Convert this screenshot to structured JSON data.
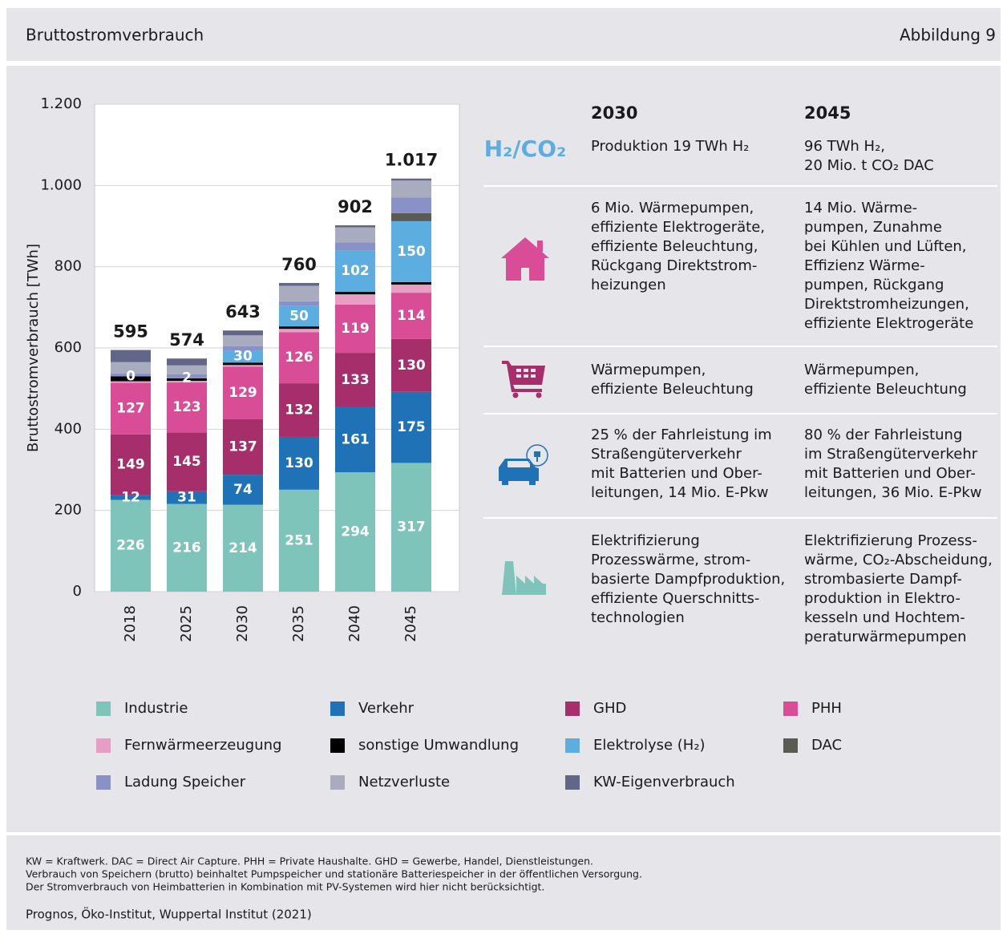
{
  "header": {
    "title": "Bruttostromverbrauch",
    "figure": "Abbildung 9"
  },
  "chart_data": {
    "type": "stacked_bar",
    "y_label": "Bruttostromverbrauch [TWh]",
    "categories": [
      "2018",
      "2025",
      "2030",
      "2035",
      "2040",
      "2045"
    ],
    "ylim": [
      0,
      1200
    ],
    "yticks": [
      0,
      200,
      400,
      600,
      800,
      {
        "value": 1000,
        "label": "1.000"
      },
      {
        "value": 1200,
        "label": "1.200"
      }
    ],
    "grid": true,
    "series": [
      {
        "name": "Industrie",
        "color": "#7fc4ba",
        "show_labels": true,
        "values": [
          226,
          216,
          214,
          251,
          294,
          317
        ]
      },
      {
        "name": "Verkehr",
        "color": "#1f72b6",
        "show_labels": true,
        "values": [
          12,
          31,
          74,
          130,
          161,
          175
        ]
      },
      {
        "name": "GHD",
        "color": "#a62f6b",
        "show_labels": true,
        "values": [
          149,
          145,
          137,
          132,
          133,
          130
        ]
      },
      {
        "name": "PHH",
        "color": "#d84d96",
        "show_labels": true,
        "values": [
          127,
          123,
          129,
          126,
          119,
          114
        ]
      },
      {
        "name": "Fernwärmeerzeugung",
        "color": "#e89dc4",
        "values": [
          4,
          4,
          4,
          8,
          25,
          20
        ]
      },
      {
        "name": "sonstige Umwandlung",
        "color": "#000000",
        "values": [
          12,
          6,
          6,
          6,
          6,
          6
        ]
      },
      {
        "name": "Elektrolyse (H₂)",
        "color": "#5caee1",
        "show_labels": true,
        "values": [
          0,
          2,
          30,
          50,
          102,
          150
        ]
      },
      {
        "name": "DAC",
        "color": "#5b5b56",
        "values": [
          0,
          0,
          0,
          0,
          0,
          20
        ]
      },
      {
        "name": "Ladung Speicher",
        "color": "#8a91c6",
        "values": [
          7,
          8,
          10,
          12,
          20,
          38
        ]
      },
      {
        "name": "Netzverluste",
        "color": "#a9abbf",
        "values": [
          28,
          22,
          27,
          38,
          37,
          42
        ]
      },
      {
        "name": "KW-Eigenverbrauch",
        "color": "#62678a",
        "values": [
          30,
          17,
          12,
          7,
          5,
          5
        ]
      }
    ],
    "totals": {
      "values": [
        595,
        574,
        643,
        760,
        902,
        1017
      ],
      "value_labels": [
        "595",
        "574",
        "643",
        "760",
        "902",
        "1.017"
      ]
    }
  },
  "table": {
    "headers": [
      "2030",
      "2045"
    ],
    "rows": [
      {
        "label": "H₂/CO₂",
        "cells": [
          [
            "Produktion 19 TWh H₂"
          ],
          [
            "96 TWh H₂,",
            "20 Mio. t CO₂ DAC"
          ]
        ]
      },
      {
        "cells": [
          [
            "6 Mio. Wärmepumpen,",
            "effiziente Elektrogeräte,",
            "effiziente Beleuchtung,",
            "Rückgang Direktstrom-",
            "heizungen"
          ],
          [
            "14 Mio. Wärme-",
            "pumpen, Zunahme",
            "bei Kühlen und Lüften,",
            "Effizienz Wärme-",
            "pumpen, Rückgang",
            "Direktstromheizungen,",
            "effiziente Elektrogeräte"
          ]
        ]
      },
      {
        "cells": [
          [
            "Wärmepumpen,",
            "effiziente Beleuchtung"
          ],
          [
            "Wärmepumpen,",
            "effiziente Beleuchtung"
          ]
        ]
      },
      {
        "cells": [
          [
            "25 % der Fahrleistung im",
            "Straßengüterverkehr",
            "mit Batterien und Ober-",
            "leitungen, 14 Mio. E-Pkw"
          ],
          [
            "80 % der Fahrleistung",
            "im Straßengüterverkehr",
            "mit Batterien und Ober-",
            "leitungen, 36 Mio. E-Pkw"
          ]
        ]
      },
      {
        "cells": [
          [
            "Elektrifizierung",
            "Prozesswärme, strom-",
            "basierte Dampfproduktion,",
            "effiziente Querschnitts-",
            "technologien"
          ],
          [
            "Elektrifizierung Prozess-",
            "wärme, CO₂-Abscheidung,",
            "strombasierte Dampf-",
            "produktion in Elektro-",
            "kesseln und Hochtem-",
            "peraturwärmepumpen"
          ]
        ]
      }
    ]
  },
  "footer": {
    "notes": [
      "KW = Kraftwerk. DAC = Direct Air Capture. PHH = Private Haushalte. GHD = Gewerbe, Handel, Dienstleistungen.",
      "Verbrauch von Speichern (brutto) beinhaltet Pumpspeicher und stationäre Batteriespeicher in der öffentlichen Versorgung.",
      "Der Stromverbrauch von Heimbatterien in Kombination mit PV-Systemen wird hier nicht berücksichtigt."
    ],
    "source": "Prognos, Öko-Institut, Wuppertal Institut (2021)"
  }
}
